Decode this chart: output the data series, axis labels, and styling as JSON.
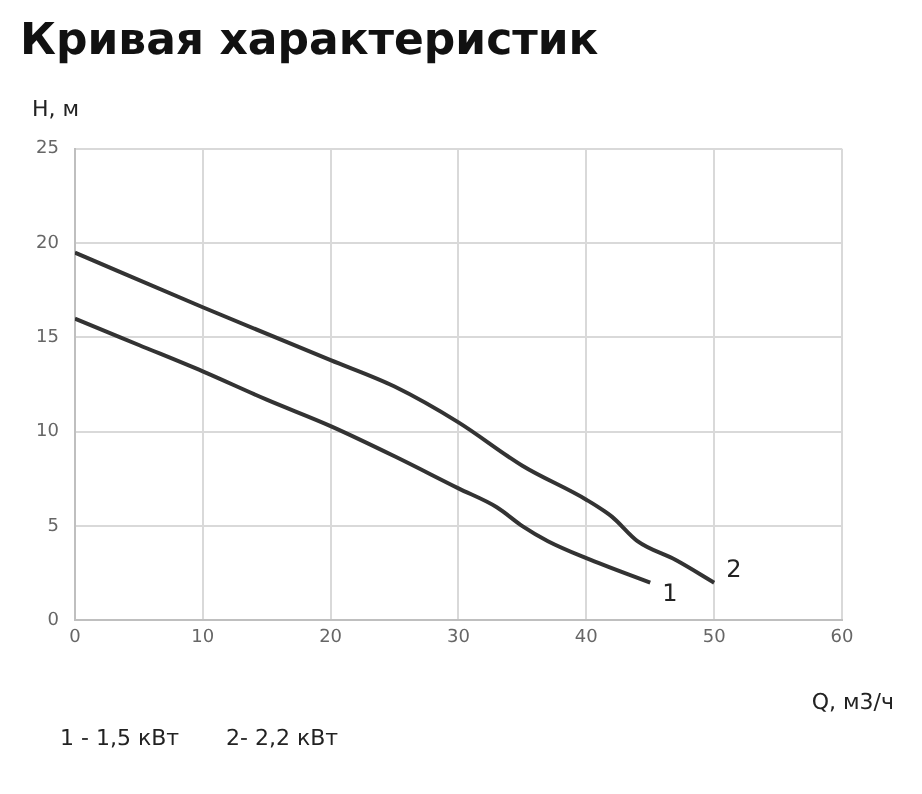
{
  "chart_data": {
    "type": "line",
    "title": "Кривая характеристик",
    "xlabel": "Q, м3/ч",
    "ylabel": "H, м",
    "annotations": [
      "1 - 1,5 кВт",
      "2- 2,2 кВт"
    ],
    "xlim": [
      0,
      60
    ],
    "xticks": [
      0,
      10,
      20,
      30,
      40,
      50,
      60
    ],
    "ylim": [
      0,
      25
    ],
    "yticks": [
      0,
      5,
      10,
      15,
      20,
      25
    ],
    "grid": true,
    "legend": false,
    "marker": "none",
    "line_style": "solid",
    "series": [
      {
        "name": "1",
        "color": "#333333",
        "x": [
          0,
          5,
          10,
          15,
          20,
          25,
          30,
          33,
          35,
          37,
          40,
          45
        ],
        "values": [
          16,
          14.6,
          13.2,
          11.7,
          10.3,
          8.7,
          7.0,
          6.0,
          5.0,
          4.2,
          3.3,
          2
        ]
      },
      {
        "name": "2",
        "color": "#333333",
        "x": [
          0,
          10,
          20,
          25,
          30,
          35,
          40,
          42,
          44,
          47,
          50
        ],
        "values": [
          19.5,
          16.6,
          13.8,
          12.4,
          10.5,
          8.2,
          6.4,
          5.5,
          4.2,
          3.2,
          2
        ]
      }
    ]
  }
}
